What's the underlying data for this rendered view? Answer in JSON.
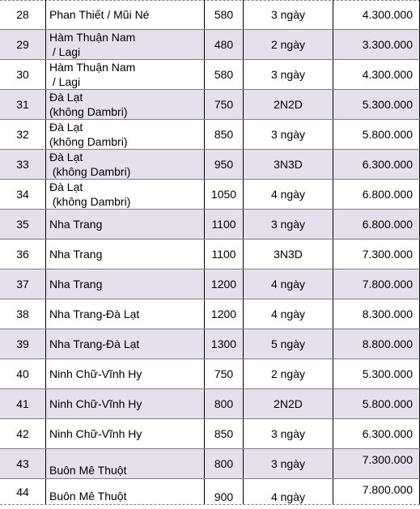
{
  "rows": [
    {
      "no": "28",
      "dest": "Phan Thiết / Mũi Né",
      "km": "580",
      "days": "3 ngày",
      "price": "4.300.000"
    },
    {
      "no": "29",
      "dest": "Hàm Thuận Nam\n / Lagi",
      "km": "480",
      "days": "2 ngày",
      "price": "3.300.000"
    },
    {
      "no": "30",
      "dest": "Hàm Thuận Nam\n / Lagi",
      "km": "580",
      "days": "3 ngày",
      "price": "4.300.000"
    },
    {
      "no": "31",
      "dest": "Đà Lạt\n(không Dambri)",
      "km": "750",
      "days": "2N2D",
      "price": "5.300.000"
    },
    {
      "no": "32",
      "dest": "Đà Lạt\n(không Dambri)",
      "km": "850",
      "days": "3 ngày",
      "price": "5.800.000"
    },
    {
      "no": "33",
      "dest": "Đà Lạt\n (không Dambri)",
      "km": "950",
      "days": "3N3D",
      "price": "6.300.000"
    },
    {
      "no": "34",
      "dest": "Đà Lạt\n (không Dambri)",
      "km": "1050",
      "days": "4 ngày",
      "price": "6.800.000"
    },
    {
      "no": "35",
      "dest": "Nha Trang",
      "km": "1100",
      "days": "3 ngày",
      "price": "6.800.000"
    },
    {
      "no": "36",
      "dest": "Nha Trang",
      "km": "1100",
      "days": "3N3D",
      "price": "7.300.000"
    },
    {
      "no": "37",
      "dest": "Nha Trang",
      "km": "1200",
      "days": "4 ngày",
      "price": "7.800.000"
    },
    {
      "no": "38",
      "dest": "Nha Trang-Đà Lạt",
      "km": "1200",
      "days": "4 ngày",
      "price": "8.300.000"
    },
    {
      "no": "39",
      "dest": "Nha Trang-Đà Lạt",
      "km": "1300",
      "days": "5 ngày",
      "price": "8.800.000"
    },
    {
      "no": "40",
      "dest": "Ninh Chữ-Vĩnh Hy",
      "km": "750",
      "days": "2 ngày",
      "price": "5.300.000"
    },
    {
      "no": "41",
      "dest": "Ninh Chữ-Vĩnh Hy",
      "km": "800",
      "days": "2N2D",
      "price": "5.800.000"
    },
    {
      "no": "42",
      "dest": "Ninh Chữ-Vĩnh Hy",
      "km": "850",
      "days": "3 ngày",
      "price": "6.300.000"
    },
    {
      "no": "43",
      "dest": "Buôn Mê Thuột",
      "km": "800",
      "days": "3 ngày",
      "price": "7.300.000"
    },
    {
      "no": "44",
      "dest": "Buôn Mê Thuột",
      "km": "900",
      "days": "4 ngày",
      "price": "7.800.000"
    }
  ],
  "colors": {
    "alt_row": "#e5e0ec",
    "border": "#7f7f7f"
  }
}
